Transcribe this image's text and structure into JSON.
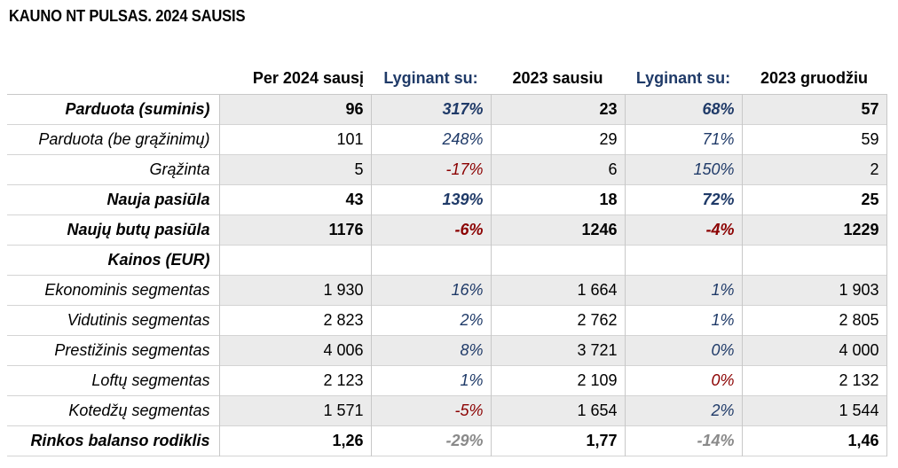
{
  "title": "KAUNO NT PULSAS. 2024 SAUSIS",
  "headers": {
    "label": "",
    "current": "Per 2024 sausį",
    "compare1": "Lyginant su:",
    "year1": "2023 sausiu",
    "compare2": "Lyginant su:",
    "year2": "2023 gruodžiu"
  },
  "colors": {
    "positive": "#1f3a68",
    "negative": "#8b0000",
    "neutral": "#8a8a8a",
    "shade": "#ebebeb"
  },
  "rows": [
    {
      "label": "Parduota (suminis)",
      "current": "96",
      "cmp1": "317%",
      "year1": "23",
      "cmp2": "68%",
      "year2": "57"
    },
    {
      "label": "Parduota (be grąžinimų)",
      "current": "101",
      "cmp1": "248%",
      "year1": "29",
      "cmp2": "71%",
      "year2": "59"
    },
    {
      "label": "Grąžinta",
      "current": "5",
      "cmp1": "-17%",
      "year1": "6",
      "cmp2": "150%",
      "year2": "2"
    },
    {
      "label": "Nauja pasiūla",
      "current": "43",
      "cmp1": "139%",
      "year1": "18",
      "cmp2": "72%",
      "year2": "25"
    },
    {
      "label": "Naujų butų pasiūla",
      "current": "1176",
      "cmp1": "-6%",
      "year1": "1246",
      "cmp2": "-4%",
      "year2": "1229"
    },
    {
      "label": "Kainos (EUR)",
      "current": "",
      "cmp1": "",
      "year1": "",
      "cmp2": "",
      "year2": ""
    },
    {
      "label": "Ekonominis segmentas",
      "current": "1 930",
      "cmp1": "16%",
      "year1": "1 664",
      "cmp2": "1%",
      "year2": "1 903"
    },
    {
      "label": "Vidutinis segmentas",
      "current": "2 823",
      "cmp1": "2%",
      "year1": "2 762",
      "cmp2": "1%",
      "year2": "2 805"
    },
    {
      "label": "Prestižinis segmentas",
      "current": "4 006",
      "cmp1": "8%",
      "year1": "3 721",
      "cmp2": "0%",
      "year2": "4 000"
    },
    {
      "label": "Loftų segmentas",
      "current": "2 123",
      "cmp1": "1%",
      "year1": "2 109",
      "cmp2": "0%",
      "year2": "2 132"
    },
    {
      "label": "Kotedžų segmentas",
      "current": "1 571",
      "cmp1": "-5%",
      "year1": "1 654",
      "cmp2": "2%",
      "year2": "1 544"
    },
    {
      "label": "Rinkos balanso rodiklis",
      "current": "1,26",
      "cmp1": "-29%",
      "year1": "1,77",
      "cmp2": "-14%",
      "year2": "1,46"
    }
  ]
}
